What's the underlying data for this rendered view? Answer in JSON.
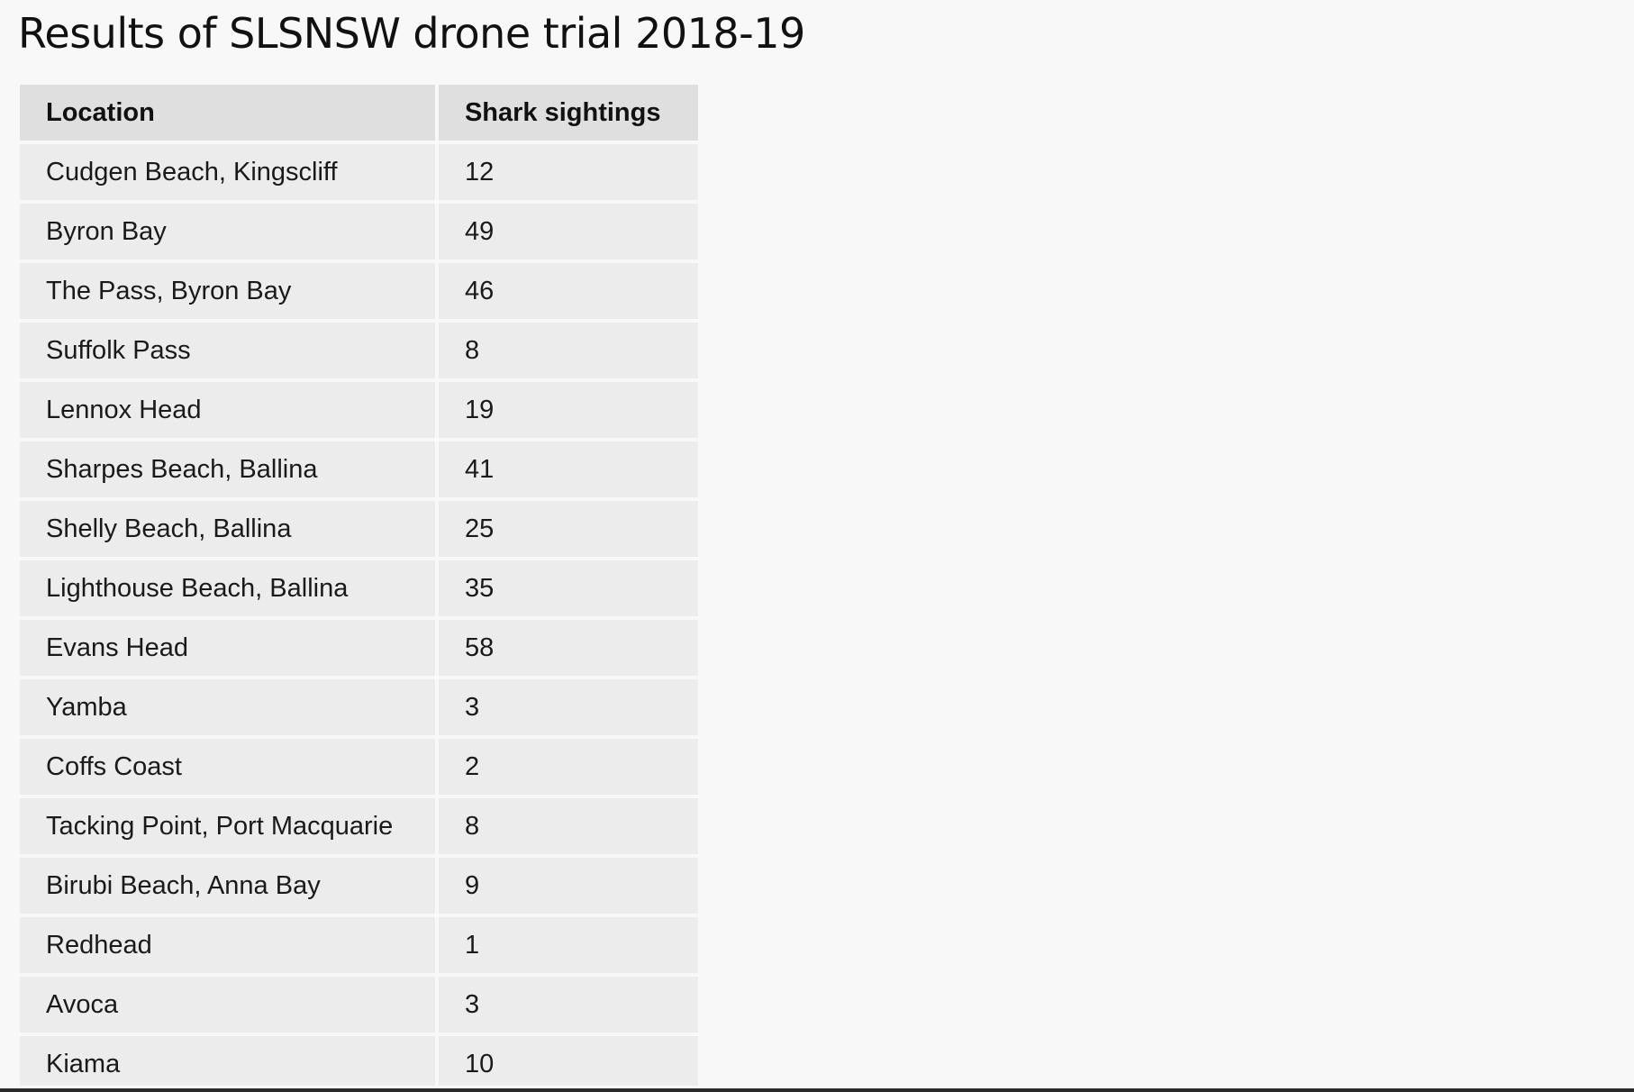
{
  "page": {
    "title": "Results of SLSNSW drone trial 2018-19"
  },
  "table": {
    "headers": [
      "Location",
      "Shark sightings"
    ],
    "rows": [
      [
        "Cudgen Beach, Kingscliff",
        "12"
      ],
      [
        "Byron Bay",
        "49"
      ],
      [
        "The Pass, Byron Bay",
        "46"
      ],
      [
        "Suffolk Pass",
        "8"
      ],
      [
        "Lennox Head",
        "19"
      ],
      [
        "Sharpes Beach, Ballina",
        "41"
      ],
      [
        "Shelly Beach, Ballina",
        "25"
      ],
      [
        "Lighthouse Beach, Ballina",
        "35"
      ],
      [
        "Evans Head",
        "58"
      ],
      [
        "Yamba",
        "3"
      ],
      [
        "Coffs Coast",
        "2"
      ],
      [
        "Tacking Point, Port Macquarie",
        "8"
      ],
      [
        "Birubi Beach, Anna Bay",
        "9"
      ],
      [
        "Redhead",
        "1"
      ],
      [
        "Avoca",
        "3"
      ],
      [
        "Kiama",
        "10"
      ]
    ]
  },
  "colors": {
    "background": "#f8f8f8",
    "header_cell": "#dfdfdf",
    "body_cell": "#ececec",
    "text": "#1a1a1a"
  }
}
